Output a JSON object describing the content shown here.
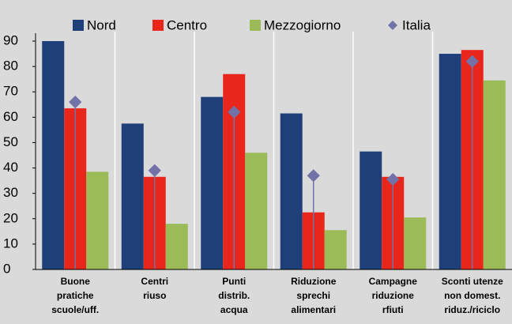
{
  "chart_data": {
    "type": "bar",
    "categories": [
      [
        "Buone",
        "pratiche",
        "scuole/uff."
      ],
      [
        "Centri",
        "riuso"
      ],
      [
        "Punti",
        "distrib.",
        "acqua"
      ],
      [
        "Riduzione",
        "sprechi",
        "alimentari"
      ],
      [
        "Campagne",
        "riduzione",
        "rfiuti"
      ],
      [
        "Sconti utenze",
        "non domest.",
        "riduz./riciclo"
      ]
    ],
    "series": [
      {
        "name": "Nord",
        "color": "#1f3f7a",
        "values": [
          90,
          57.5,
          68,
          61.5,
          46.5,
          85
        ]
      },
      {
        "name": "Centro",
        "color": "#e8261b",
        "values": [
          63.5,
          36.5,
          77,
          22.5,
          36.5,
          86.5
        ]
      },
      {
        "name": "Mezzogiorno",
        "color": "#9bbb59",
        "values": [
          38.5,
          18,
          46,
          15.5,
          20.5,
          74.5
        ]
      },
      {
        "name": "Italia",
        "color": "#7272a8",
        "marker": "diamond",
        "values": [
          66,
          39,
          62,
          37,
          35.5,
          82
        ]
      }
    ],
    "ylim": [
      0,
      90
    ],
    "yticks": [
      0,
      10,
      20,
      30,
      40,
      50,
      60,
      70,
      80,
      90
    ]
  }
}
